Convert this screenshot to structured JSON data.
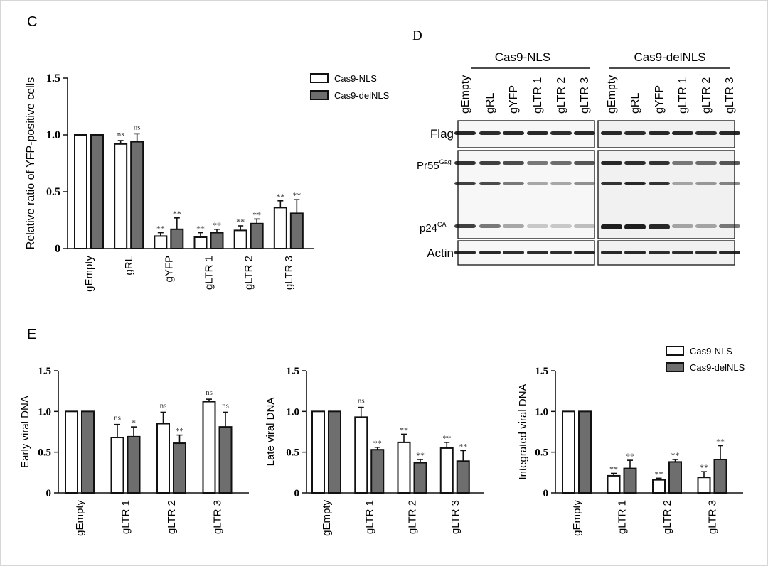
{
  "colors": {
    "nls_fill": "#ffffff",
    "delnls_fill": "#6e6e6e",
    "stroke": "#111111"
  },
  "panel_c": {
    "letter": "C",
    "legend": [
      "Cas9-NLS",
      "Cas9-delNLS"
    ],
    "chart_data": {
      "type": "bar",
      "title": "",
      "ylabel": "Relative ratio of  YFP-positive cells",
      "xlabel": "",
      "ylim": [
        0,
        1.5
      ],
      "yticks": [
        "0",
        "0.5",
        "1.0",
        "1.5"
      ],
      "categories": [
        "gEmpty",
        "gRL",
        "gYFP",
        "gLTR 1",
        "gLTR 2",
        "gLTR 3"
      ],
      "series": [
        {
          "name": "Cas9-NLS",
          "values": [
            1.0,
            0.92,
            0.11,
            0.1,
            0.16,
            0.36
          ],
          "errors": [
            0,
            0.03,
            0.03,
            0.04,
            0.04,
            0.06
          ],
          "sig": [
            "",
            "ns",
            "**",
            "**",
            "**",
            "**"
          ]
        },
        {
          "name": "Cas9-delNLS",
          "values": [
            1.0,
            0.94,
            0.17,
            0.14,
            0.22,
            0.31
          ],
          "errors": [
            0,
            0.07,
            0.1,
            0.03,
            0.04,
            0.12
          ],
          "sig": [
            "",
            "ns",
            "**",
            "**",
            "**",
            "**"
          ]
        }
      ]
    }
  },
  "panel_d": {
    "letter": "D",
    "groups": [
      "Cas9-NLS",
      "Cas9-delNLS"
    ],
    "lanes": [
      "gEmpty",
      "gRL",
      "gYFP",
      "gLTR 1",
      "gLTR 2",
      "gLTR 3"
    ],
    "rows": {
      "flag": "Flag",
      "pr55": "Pr55",
      "pr55_sup": "Gag",
      "p24": "p24",
      "p24_sup": "CA",
      "actin": "Actin"
    }
  },
  "panel_e": {
    "letter": "E",
    "legend": [
      "Cas9-NLS",
      "Cas9-delNLS"
    ],
    "chart_data": [
      {
        "type": "bar",
        "title": "",
        "xlabel": "",
        "ylabel": "Early viral DNA",
        "ylim": [
          0,
          1.5
        ],
        "yticks": [
          "0",
          "0.5",
          "1.0",
          "1.5"
        ],
        "categories": [
          "gEmpty",
          "gLTR 1",
          "gLTR 2",
          "gLTR 3"
        ],
        "series": [
          {
            "name": "Cas9-NLS",
            "values": [
              1.0,
              0.68,
              0.85,
              1.12
            ],
            "errors": [
              0,
              0.16,
              0.14,
              0.03
            ],
            "sig": [
              "",
              "ns",
              "ns",
              "ns"
            ]
          },
          {
            "name": "Cas9-delNLS",
            "values": [
              1.0,
              0.69,
              0.61,
              0.81
            ],
            "errors": [
              0,
              0.12,
              0.1,
              0.18
            ],
            "sig": [
              "",
              "*",
              "**",
              "ns"
            ]
          }
        ]
      },
      {
        "type": "bar",
        "title": "",
        "xlabel": "",
        "ylabel": "Late viral DNA",
        "ylim": [
          0,
          1.5
        ],
        "yticks": [
          "0",
          "0.5",
          "1.0",
          "1.5"
        ],
        "categories": [
          "gEmpty",
          "gLTR 1",
          "gLTR 2",
          "gLTR 3"
        ],
        "series": [
          {
            "name": "Cas9-NLS",
            "values": [
              1.0,
              0.93,
              0.62,
              0.55
            ],
            "errors": [
              0,
              0.12,
              0.1,
              0.07
            ],
            "sig": [
              "",
              "ns",
              "**",
              "**"
            ]
          },
          {
            "name": "Cas9-delNLS",
            "values": [
              1.0,
              0.53,
              0.37,
              0.39
            ],
            "errors": [
              0,
              0.03,
              0.04,
              0.13
            ],
            "sig": [
              "",
              "**",
              "**",
              "**"
            ]
          }
        ]
      },
      {
        "type": "bar",
        "title": "",
        "xlabel": "",
        "ylabel": "Integrated viral DNA",
        "ylim": [
          0,
          1.5
        ],
        "yticks": [
          "0",
          "0.5",
          "1.0",
          "1.5"
        ],
        "categories": [
          "gEmpty",
          "gLTR 1",
          "gLTR 2",
          "gLTR 3"
        ],
        "series": [
          {
            "name": "Cas9-NLS",
            "values": [
              1.0,
              0.21,
              0.16,
              0.19
            ],
            "errors": [
              0,
              0.03,
              0.02,
              0.07
            ],
            "sig": [
              "",
              "**",
              "**",
              "**"
            ]
          },
          {
            "name": "Cas9-delNLS",
            "values": [
              1.0,
              0.3,
              0.38,
              0.41
            ],
            "errors": [
              0,
              0.1,
              0.03,
              0.17
            ],
            "sig": [
              "",
              "**",
              "**",
              "**"
            ]
          }
        ]
      }
    ]
  }
}
